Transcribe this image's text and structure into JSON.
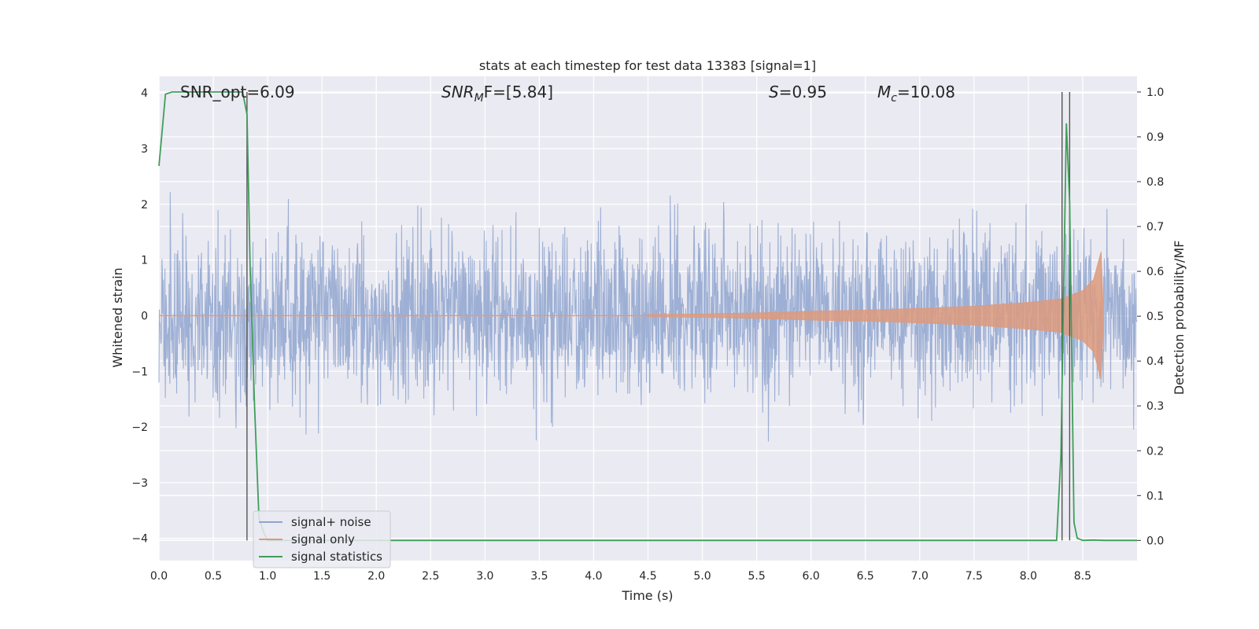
{
  "chart_data": {
    "type": "line",
    "title": "stats at each timestep for test data 13383 [signal=1]",
    "xlabel": "Time (s)",
    "ylabel": "Whitened strain",
    "y2label": "Detection probability/MF",
    "xlim": [
      0.0,
      9.0
    ],
    "ylim": [
      -4.4,
      4.3
    ],
    "y2lim": [
      -0.045,
      1.035
    ],
    "xticks": [
      "0.0",
      "0.5",
      "1.0",
      "1.5",
      "2.0",
      "2.5",
      "3.0",
      "3.5",
      "4.0",
      "4.5",
      "5.0",
      "5.5",
      "6.0",
      "6.5",
      "7.0",
      "7.5",
      "8.0",
      "8.5"
    ],
    "yticks": [
      "4",
      "3",
      "2",
      "1",
      "0",
      "−1",
      "−2",
      "−3",
      "−4"
    ],
    "y2ticks": [
      "1.0",
      "0.9",
      "0.8",
      "0.7",
      "0.6",
      "0.5",
      "0.4",
      "0.3",
      "0.2",
      "0.1",
      "0.0"
    ],
    "grid": true,
    "legend_position": "lower-left",
    "annotations": {
      "snr_opt": "SNR_opt=6.09",
      "snr_mf_main": "SNR",
      "snr_mf_sub": "M",
      "snr_mf_rest": "F=[5.84]",
      "s_var": "S",
      "s_rest": "=0.95",
      "mc_var": "M",
      "mc_sub": "c",
      "mc_rest": "=10.08"
    },
    "series": [
      {
        "name": "signal+ noise",
        "color": "#8fa5cf",
        "description_values": "dense noise between about -2.6 and +2.6 with spikes up to 3.9 and down to -3.9",
        "envelope_approx": {
          "max": 3.9,
          "min": -3.9
        }
      },
      {
        "name": "signal only",
        "color": "#dd9a7d",
        "x": [
          4.5,
          5.0,
          5.5,
          6.0,
          6.5,
          7.0,
          7.5,
          8.0,
          8.3,
          8.5,
          8.6,
          8.67,
          8.69
        ],
        "amplitude": [
          0.02,
          0.03,
          0.05,
          0.08,
          0.1,
          0.13,
          0.17,
          0.24,
          0.3,
          0.45,
          0.65,
          1.15,
          0.0
        ]
      },
      {
        "name": "signal statistics",
        "color": "#3f9e5a",
        "axis": "right",
        "x": [
          0.0,
          0.06,
          0.12,
          0.3,
          0.5,
          0.7,
          0.77,
          0.81,
          0.84,
          0.88,
          0.92,
          0.96,
          1.0,
          1.2,
          2.0,
          4.0,
          6.0,
          8.0,
          8.26,
          8.3,
          8.35,
          8.38,
          8.42,
          8.45,
          8.5,
          8.6,
          8.7,
          8.9,
          9.0
        ],
        "y": [
          0.835,
          0.995,
          1.0,
          1.0,
          1.0,
          1.0,
          1.0,
          0.95,
          0.6,
          0.3,
          0.05,
          0.02,
          0.0,
          0.0,
          0.0,
          0.0,
          0.0,
          0.0,
          0.0,
          0.19,
          0.93,
          0.75,
          0.04,
          0.005,
          0.0,
          0.001,
          0.0,
          0.0,
          0.0
        ]
      }
    ],
    "vertical_lines": [
      0.81,
      8.31,
      8.38
    ],
    "vertical_line_color": "#555555"
  }
}
